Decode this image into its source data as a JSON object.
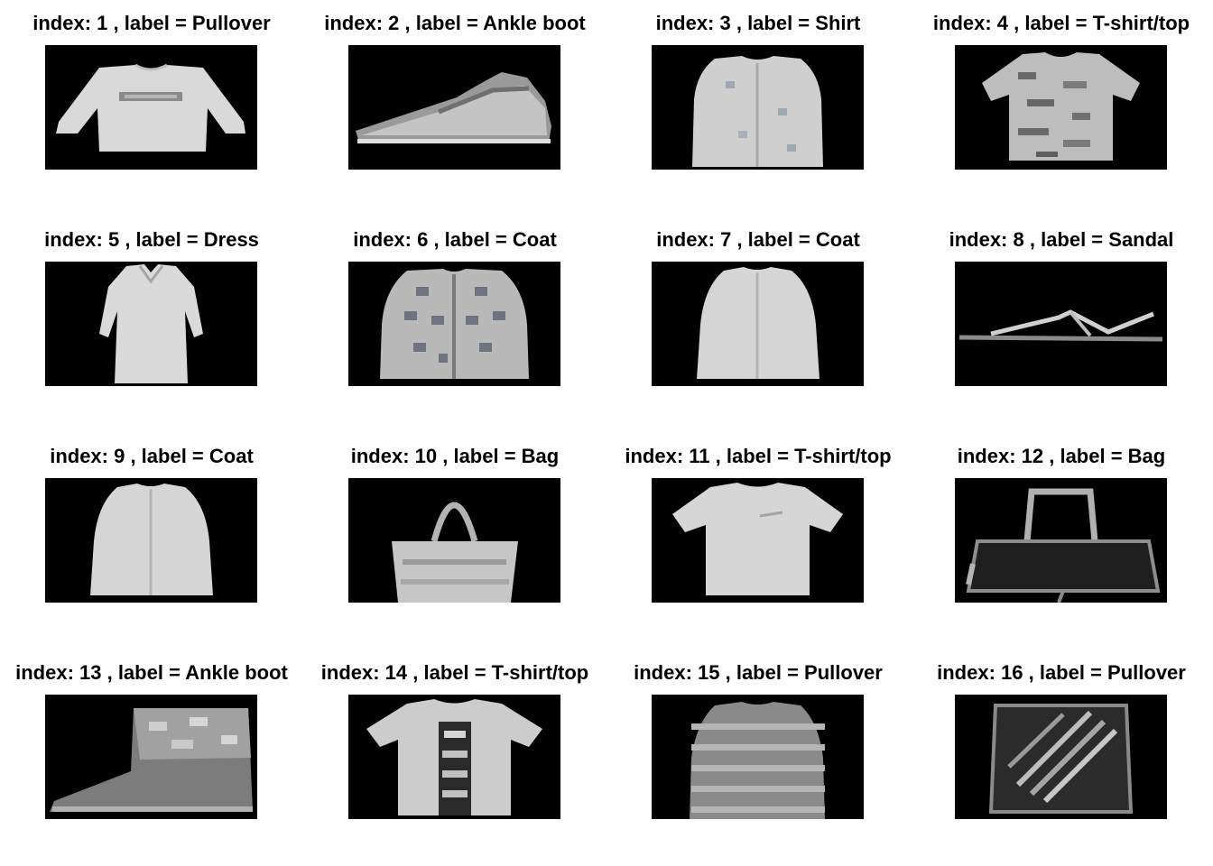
{
  "figure": {
    "background": "#ffffff",
    "image_background": "#000000",
    "samples": [
      {
        "title": "index: 1 , label = Pullover",
        "index": 1,
        "label": "Pullover",
        "garment": "pullover-icon"
      },
      {
        "title": "index: 2 , label = Ankle boot",
        "index": 2,
        "label": "Ankle boot",
        "garment": "loafer-shoe-icon"
      },
      {
        "title": "index: 3 , label = Shirt",
        "index": 3,
        "label": "Shirt",
        "garment": "shirt-icon"
      },
      {
        "title": "index: 4 , label = T-shirt/top",
        "index": 4,
        "label": "T-shirt/top",
        "garment": "patterned-tshirt-icon"
      },
      {
        "title": "index: 5 , label = Dress",
        "index": 5,
        "label": "Dress",
        "garment": "dress-icon"
      },
      {
        "title": "index: 6 , label = Coat",
        "index": 6,
        "label": "Coat",
        "garment": "patterned-coat-icon"
      },
      {
        "title": "index: 7 , label = Coat",
        "index": 7,
        "label": "Coat",
        "garment": "coat-icon"
      },
      {
        "title": "index: 8 , label = Sandal",
        "index": 8,
        "label": "Sandal",
        "garment": "sandal-icon"
      },
      {
        "title": "index: 9 , label = Coat",
        "index": 9,
        "label": "Coat",
        "garment": "coat-icon"
      },
      {
        "title": "index: 10 , label = Bag",
        "index": 10,
        "label": "Bag",
        "garment": "tote-bag-icon"
      },
      {
        "title": "index: 11 , label = T-shirt/top",
        "index": 11,
        "label": "T-shirt/top",
        "garment": "tshirt-icon"
      },
      {
        "title": "index: 12 , label = Bag",
        "index": 12,
        "label": "Bag",
        "garment": "duffel-bag-icon"
      },
      {
        "title": "index: 13 , label = Ankle boot",
        "index": 13,
        "label": "Ankle boot",
        "garment": "ankle-boot-icon"
      },
      {
        "title": "index: 14 , label = T-shirt/top",
        "index": 14,
        "label": "T-shirt/top",
        "garment": "graphic-tshirt-icon"
      },
      {
        "title": "index: 15 , label = Pullover",
        "index": 15,
        "label": "Pullover",
        "garment": "striped-pullover-icon"
      },
      {
        "title": "index: 16 , label = Pullover",
        "index": 16,
        "label": "Pullover",
        "garment": "dark-pullover-icon"
      }
    ]
  }
}
